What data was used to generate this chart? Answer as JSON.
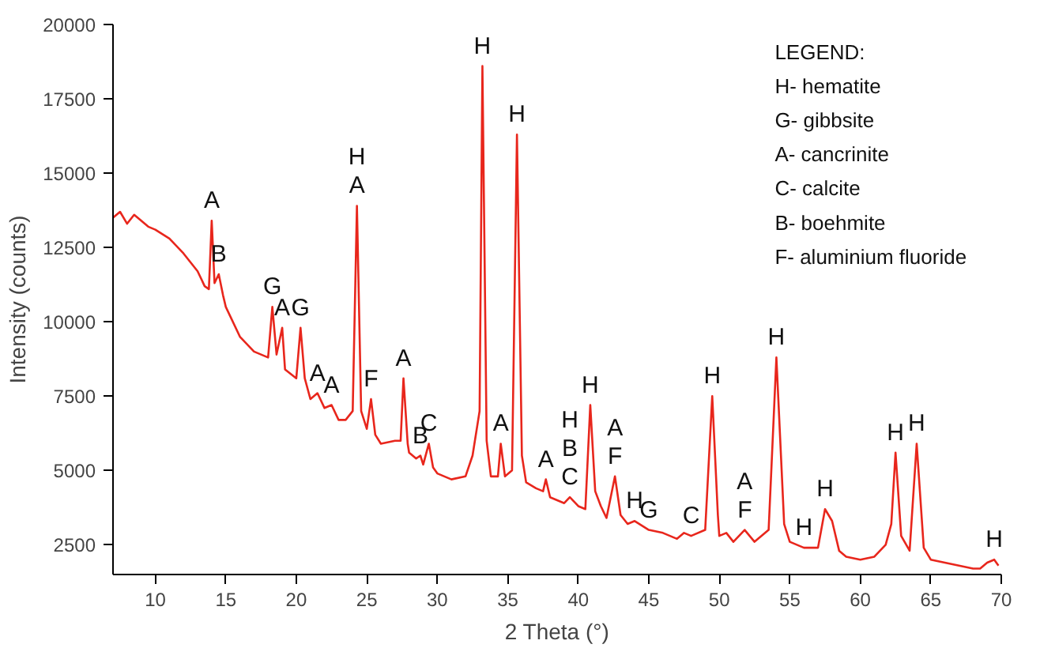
{
  "chart_data": {
    "type": "line",
    "xlabel": "2 Theta (°)",
    "ylabel": "Intensity (counts)",
    "x": [
      7,
      7.5,
      8,
      8.5,
      9,
      9.5,
      10,
      11,
      12,
      13,
      13.5,
      13.8,
      14,
      14.2,
      14.5,
      14.8,
      15,
      16,
      17,
      18,
      18.3,
      18.6,
      19,
      19.2,
      20,
      20.3,
      20.6,
      21,
      21.5,
      22,
      22.5,
      23,
      23.5,
      24,
      24.3,
      24.6,
      25,
      25.3,
      25.6,
      26,
      27,
      27.4,
      27.6,
      27.9,
      28,
      28.5,
      28.8,
      29,
      29.4,
      29.7,
      30,
      31,
      32,
      32.5,
      33,
      33.2,
      33.5,
      33.8,
      34.3,
      34.5,
      34.8,
      35.3,
      35.65,
      36,
      36.3,
      37,
      37.5,
      37.7,
      38,
      39,
      39.4,
      40,
      40.5,
      40.85,
      41.2,
      41.6,
      42,
      42.6,
      43,
      43.5,
      44,
      45,
      46,
      47,
      47.5,
      48,
      49,
      49.5,
      49.9,
      50,
      50.5,
      51,
      51.8,
      52.5,
      53.5,
      54.05,
      54.6,
      55,
      56,
      57,
      57.5,
      58,
      58.5,
      59,
      60,
      61,
      61.8,
      62.2,
      62.5,
      62.9,
      63.5,
      64,
      64.5,
      65,
      66,
      67,
      68,
      68.5,
      69,
      69.5,
      69.8
    ],
    "series": [
      {
        "color": "#e8261c",
        "values": [
          13500,
          13700,
          13300,
          13600,
          13400,
          13200,
          13100,
          12800,
          12300,
          11700,
          11200,
          11100,
          13400,
          11300,
          11600,
          10900,
          10500,
          9500,
          9000,
          8800,
          10500,
          8900,
          9800,
          8400,
          8100,
          9800,
          8100,
          7400,
          7600,
          7100,
          7200,
          6700,
          6700,
          7000,
          13900,
          7000,
          6400,
          7400,
          6200,
          5900,
          6000,
          6000,
          8100,
          5900,
          5600,
          5400,
          5500,
          5200,
          5900,
          5100,
          4900,
          4700,
          4800,
          5500,
          7000,
          18600,
          6000,
          4800,
          4800,
          5900,
          4800,
          5000,
          16300,
          5500,
          4600,
          4400,
          4300,
          4700,
          4100,
          3900,
          4100,
          3800,
          3700,
          7200,
          4300,
          3800,
          3400,
          4800,
          3500,
          3200,
          3300,
          3000,
          2900,
          2700,
          2900,
          2800,
          3000,
          7500,
          3500,
          2800,
          2900,
          2600,
          3000,
          2600,
          3000,
          8800,
          3200,
          2600,
          2400,
          2400,
          3700,
          3300,
          2300,
          2100,
          2000,
          2100,
          2500,
          3200,
          5600,
          2800,
          2300,
          5900,
          2400,
          2000,
          1900,
          1800,
          1700,
          1700,
          1900,
          2000,
          1800
        ]
      }
    ],
    "xlim": [
      7,
      70
    ],
    "ylim": [
      1500,
      20000
    ],
    "xticks": [
      10,
      15,
      20,
      25,
      30,
      35,
      40,
      45,
      50,
      55,
      60,
      65,
      70
    ],
    "yticks": [
      2500,
      5000,
      7500,
      10000,
      12500,
      15000,
      17500,
      20000
    ],
    "grid": false,
    "marker": "none",
    "line_style": "solid",
    "annotations": [
      {
        "text": "A",
        "x": 14,
        "y": 13400
      },
      {
        "text": "B",
        "x": 14.5,
        "y": 11600
      },
      {
        "text": "G",
        "x": 18.3,
        "y": 10500
      },
      {
        "text": "A",
        "x": 19,
        "y": 9800
      },
      {
        "text": "G",
        "x": 20.3,
        "y": 9800
      },
      {
        "text": "A",
        "x": 21.5,
        "y": 7600
      },
      {
        "text": "A",
        "x": 22.5,
        "y": 7200
      },
      {
        "text": "H",
        "x": 24.3,
        "y": 13900
      },
      {
        "text": "A",
        "x": 24.3,
        "y": 13900
      },
      {
        "text": "F",
        "x": 25.3,
        "y": 7400
      },
      {
        "text": "A",
        "x": 27.6,
        "y": 8100
      },
      {
        "text": "B",
        "x": 28.8,
        "y": 5500
      },
      {
        "text": "C",
        "x": 29.4,
        "y": 5900
      },
      {
        "text": "H",
        "x": 33.2,
        "y": 18600
      },
      {
        "text": "H",
        "x": 35.65,
        "y": 16300
      },
      {
        "text": "A",
        "x": 34.5,
        "y": 5900
      },
      {
        "text": "A",
        "x": 37.7,
        "y": 4700
      },
      {
        "text": "H",
        "x": 39.4,
        "y": 4100
      },
      {
        "text": "B",
        "x": 39.4,
        "y": 4100
      },
      {
        "text": "C",
        "x": 39.4,
        "y": 4100
      },
      {
        "text": "H",
        "x": 40.85,
        "y": 7200
      },
      {
        "text": "A",
        "x": 42.6,
        "y": 4800
      },
      {
        "text": "F",
        "x": 42.6,
        "y": 4800
      },
      {
        "text": "H",
        "x": 44,
        "y": 3300
      },
      {
        "text": "G",
        "x": 45,
        "y": 3000
      },
      {
        "text": "C",
        "x": 48,
        "y": 2800
      },
      {
        "text": "H",
        "x": 49.5,
        "y": 7500
      },
      {
        "text": "A",
        "x": 51.8,
        "y": 3000
      },
      {
        "text": "F",
        "x": 51.8,
        "y": 3000
      },
      {
        "text": "H",
        "x": 54.05,
        "y": 8800
      },
      {
        "text": "H",
        "x": 56,
        "y": 2400
      },
      {
        "text": "H",
        "x": 57.5,
        "y": 3700
      },
      {
        "text": "H",
        "x": 62.5,
        "y": 5600
      },
      {
        "text": "H",
        "x": 64,
        "y": 5900
      },
      {
        "text": "H",
        "x": 69.5,
        "y": 2000
      },
      "LEGEND:",
      "H- hematite",
      "G- gibbsite",
      "A- cancrinite",
      "C- calcite",
      "B- boehmite",
      "F- aluminium fluoride"
    ]
  }
}
